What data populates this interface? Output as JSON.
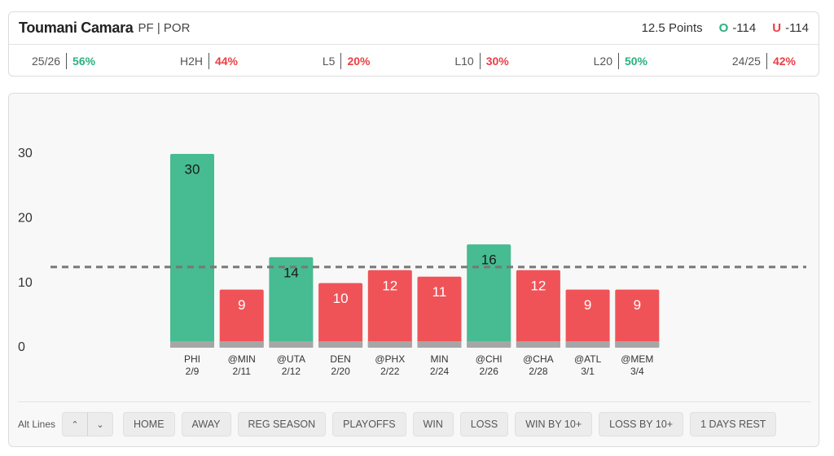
{
  "header": {
    "player": "Toumani Camara",
    "position": "PF | POR",
    "line": "12.5 Points",
    "over": {
      "label": "O",
      "odds": "-114"
    },
    "under": {
      "label": "U",
      "odds": "-114"
    }
  },
  "splits": [
    {
      "label": "25/26",
      "value": "56%"
    },
    {
      "label": "H2H",
      "value": "44%"
    },
    {
      "label": "L5",
      "value": "20%"
    },
    {
      "label": "L10",
      "value": "30%"
    },
    {
      "label": "L20",
      "value": "50%"
    },
    {
      "label": "24/25",
      "value": "42%"
    }
  ],
  "chart_data": {
    "type": "bar",
    "categories": [
      "PHI",
      "@MIN",
      "@UTA",
      "DEN",
      "@PHX",
      "MIN",
      "@CHI",
      "@CHA",
      "@ATL",
      "@MEM"
    ],
    "dates": [
      "2/9",
      "2/11",
      "2/12",
      "2/20",
      "2/22",
      "2/24",
      "2/26",
      "2/28",
      "3/1",
      "3/4"
    ],
    "values": [
      30,
      9,
      14,
      10,
      12,
      11,
      16,
      12,
      9,
      9
    ],
    "ylim": [
      0,
      30
    ],
    "yticks": [
      0,
      10,
      20,
      30
    ],
    "line_value": 12.5,
    "colors": {
      "over": "#47bb92",
      "under": "#ef5358"
    }
  },
  "filters": {
    "label": "Alt Lines",
    "buttons": [
      "HOME",
      "AWAY",
      "REG SEASON",
      "PLAYOFFS",
      "WIN",
      "LOSS",
      "WIN BY 10+",
      "LOSS BY 10+",
      "1 DAYS REST"
    ]
  }
}
